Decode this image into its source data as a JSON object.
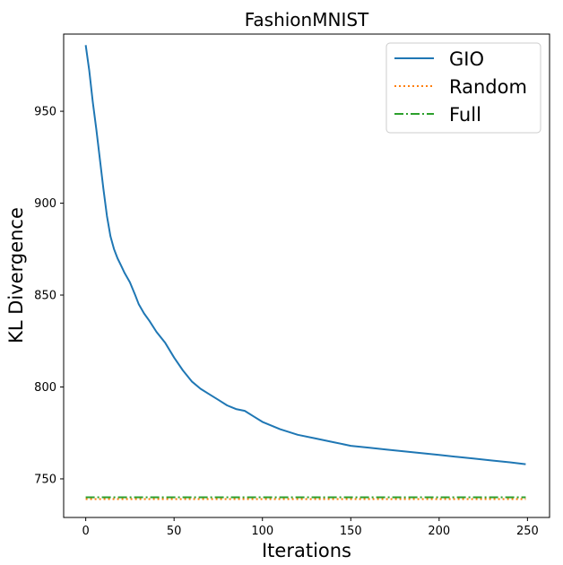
{
  "chart_data": {
    "type": "line",
    "title": "FashionMNIST",
    "xlabel": "Iterations",
    "ylabel": "KL Divergence",
    "xlim": [
      -12.5,
      262.5
    ],
    "ylim": [
      729,
      992
    ],
    "xticks": [
      0,
      50,
      100,
      150,
      200,
      250
    ],
    "yticks": [
      750,
      800,
      850,
      900,
      950
    ],
    "grid": false,
    "legend_position": "top-right",
    "series": [
      {
        "name": "GIO",
        "style": "solid",
        "color": "#1f77b4",
        "x": [
          0,
          2,
          4,
          6,
          8,
          10,
          12,
          14,
          16,
          18,
          20,
          22,
          25,
          28,
          30,
          33,
          36,
          40,
          45,
          50,
          55,
          60,
          65,
          70,
          75,
          80,
          85,
          90,
          95,
          100,
          110,
          120,
          130,
          140,
          150,
          160,
          170,
          180,
          190,
          200,
          210,
          220,
          230,
          240,
          249
        ],
        "y": [
          986,
          972,
          955,
          940,
          924,
          908,
          893,
          882,
          875,
          870,
          866,
          862,
          857,
          850,
          845,
          840,
          836,
          830,
          824,
          816,
          809,
          803,
          799,
          796,
          793,
          790,
          788,
          787,
          784,
          781,
          777,
          774,
          772,
          770,
          768,
          767,
          766,
          765,
          764,
          763,
          762,
          761,
          760,
          759,
          758
        ]
      },
      {
        "name": "Random",
        "style": "dotted",
        "color": "#ff7f0e",
        "x": [
          0,
          249
        ],
        "y": [
          739,
          739
        ]
      },
      {
        "name": "Full",
        "style": "dashdot",
        "color": "#2ca02c",
        "x": [
          0,
          249
        ],
        "y": [
          740,
          740
        ]
      }
    ]
  }
}
